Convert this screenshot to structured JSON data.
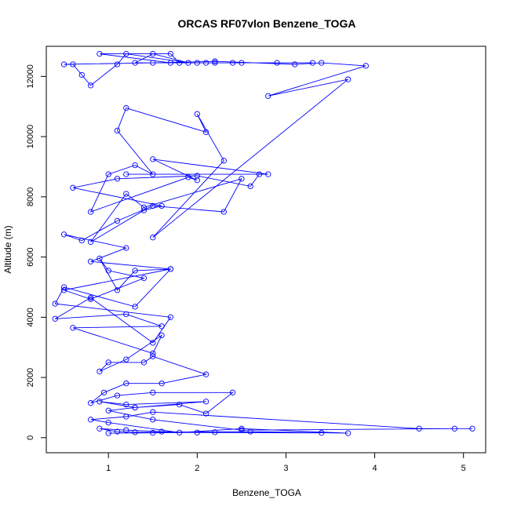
{
  "chart_data": {
    "type": "line",
    "title": "ORCAS RF07vlon Benzene_TOGA",
    "xlabel": "Benzene_TOGA",
    "ylabel": "Altitude (m)",
    "xlim": [
      0.3,
      5.25
    ],
    "ylim": [
      -500,
      13000
    ],
    "xticks": [
      1,
      2,
      3,
      4,
      5
    ],
    "yticks": [
      0,
      2000,
      4000,
      6000,
      8000,
      10000,
      12000
    ],
    "marker": "open-circle",
    "line_color": "#0000ff",
    "series": [
      {
        "name": "Benzene_TOGA",
        "x": [
          1.0,
          1.5,
          2.2,
          3.4,
          2.0,
          1.6,
          1.2,
          0.9,
          1.1,
          1.3,
          2.6,
          3.7,
          2.5,
          1.8,
          1.0,
          0.8,
          1.2,
          1.5,
          4.5,
          5.1,
          4.9,
          2.5,
          1.5,
          1.0,
          1.3,
          2.1,
          1.2,
          0.9,
          1.3,
          1.8,
          2.1,
          2.4,
          1.5,
          1.1,
          0.8,
          0.95,
          1.2,
          1.6,
          2.1,
          1.5,
          1.4,
          1.0,
          0.9,
          1.2,
          1.6,
          1.5,
          0.6,
          1.6,
          1.2,
          0.4,
          0.8,
          1.5,
          1.7,
          0.4,
          0.5,
          1.3,
          1.7,
          0.5,
          0.8,
          1.4,
          1.0,
          0.9,
          1.1,
          1.3,
          1.7,
          0.8,
          1.2,
          0.5,
          0.7,
          1.1,
          1.5,
          2.3,
          2.5,
          1.4,
          1.2,
          0.8,
          1.4,
          1.6,
          0.6,
          1.1,
          2.0,
          2.6,
          2.7,
          1.2,
          2.8,
          1.5,
          2.0,
          1.9,
          0.8,
          1.0,
          1.3,
          1.5,
          1.1,
          1.2,
          2.1,
          2.0,
          2.3,
          1.5,
          3.7,
          2.8,
          3.9,
          3.4,
          3.1,
          2.2,
          1.5,
          0.5,
          0.6,
          0.7,
          0.8,
          1.1,
          1.2,
          1.9,
          1.5,
          1.3,
          2.0,
          2.4,
          2.5,
          2.2,
          1.8,
          1.7,
          0.9,
          1.7,
          2.1,
          2.9,
          3.3
        ],
        "y": [
          150,
          160,
          180,
          160,
          170,
          200,
          250,
          300,
          200,
          180,
          200,
          150,
          300,
          170,
          500,
          600,
          700,
          850,
          300,
          300,
          300,
          250,
          600,
          900,
          1000,
          1200,
          1100,
          1200,
          1000,
          1100,
          800,
          1500,
          1500,
          1400,
          1150,
          1500,
          1800,
          1800,
          2100,
          2700,
          2500,
          2500,
          2200,
          2600,
          3400,
          2800,
          3650,
          3700,
          4100,
          3950,
          4650,
          3150,
          4000,
          4450,
          5000,
          4350,
          5600,
          4900,
          4600,
          5300,
          5550,
          5950,
          4900,
          5550,
          5600,
          5850,
          6300,
          6750,
          6550,
          7200,
          7700,
          7500,
          8600,
          7650,
          8100,
          6500,
          7550,
          7700,
          8300,
          8600,
          8700,
          8350,
          8750,
          8750,
          8750,
          9250,
          8550,
          8650,
          7500,
          8750,
          9050,
          8750,
          10200,
          10950,
          10150,
          10750,
          9200,
          6650,
          11900,
          11350,
          12350,
          12450,
          12400,
          12500,
          12450,
          12400,
          12400,
          12050,
          11700,
          12400,
          12750,
          12450,
          12750,
          12450,
          12450,
          12450,
          12450,
          12450,
          12450,
          12750,
          12750,
          12450,
          12450,
          12450,
          12450
        ]
      }
    ]
  }
}
